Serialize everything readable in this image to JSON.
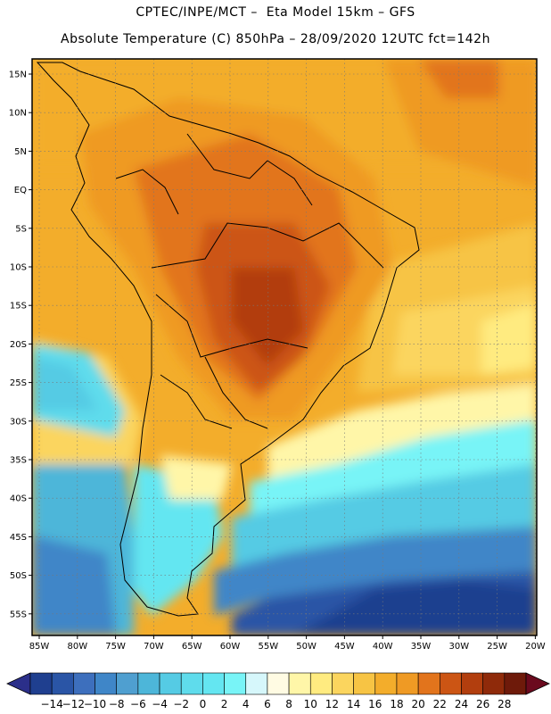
{
  "header": {
    "line1": "CPTEC/INPE/MCT –  Eta Model 15km – GFS",
    "line2": "Absolute Temperature (C) 850hPa – 28/09/2020 12UTC fct=142h"
  },
  "axes": {
    "lat_labels": [
      "15N",
      "10N",
      "5N",
      "EQ",
      "5S",
      "10S",
      "15S",
      "20S",
      "25S",
      "30S",
      "35S",
      "40S",
      "45S",
      "50S",
      "55S"
    ],
    "lon_labels": [
      "85W",
      "80W",
      "75W",
      "70W",
      "65W",
      "60W",
      "55W",
      "50W",
      "45W",
      "40W",
      "35W",
      "30W",
      "25W",
      "20W"
    ]
  },
  "colorbar": {
    "labels": [
      "-14",
      "-12",
      "-10",
      "-8",
      "-6",
      "-4",
      "-2",
      "0",
      "2",
      "4",
      "6",
      "8",
      "10",
      "12",
      "14",
      "16",
      "18",
      "20",
      "22",
      "24",
      "26",
      "28"
    ],
    "colors": [
      "#1f3f8f",
      "#2a55a6",
      "#3d6fbd",
      "#3f86c8",
      "#4f9fd0",
      "#4db6d9",
      "#55cbe4",
      "#5fdcec",
      "#64e6f1",
      "#78f4f7",
      "#d6f7fb",
      "#fffbe3",
      "#fff6a8",
      "#ffeb80",
      "#fbd55e",
      "#f7c444",
      "#f3ad2b",
      "#ef9a24",
      "#e2741c",
      "#cc5514",
      "#b23e0e",
      "#8f2a0a",
      "#6e1a0a"
    ],
    "under_color": "#2b2f8a",
    "over_color": "#6b0a1e"
  }
}
